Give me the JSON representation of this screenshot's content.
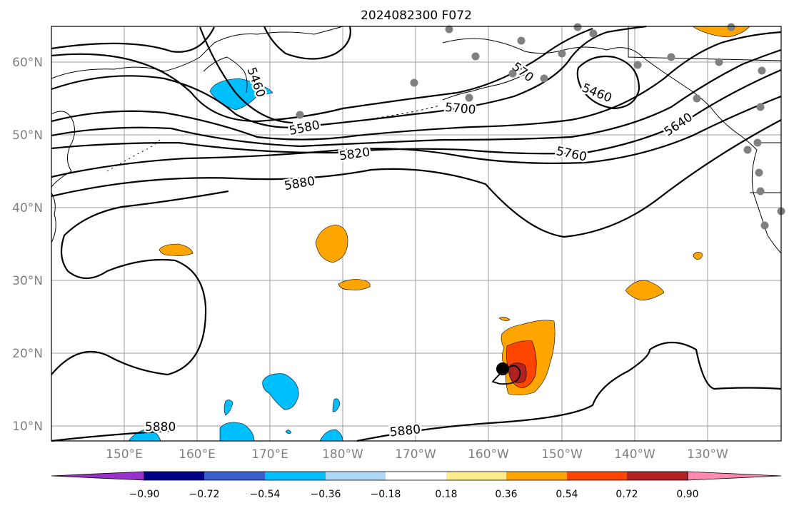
{
  "title": "2024082300 F072",
  "lat_labels": [
    "60°N",
    "50°N",
    "40°N",
    "30°N",
    "20°N",
    "10°N"
  ],
  "lon_labels": [
    "150°E",
    "160°E",
    "170°E",
    "180°W",
    "170°W",
    "160°W",
    "150°W",
    "140°W",
    "130°W"
  ],
  "contour_labels": [
    "5460",
    "5460",
    "5580",
    "5640",
    "5700",
    "5760",
    "5820",
    "5880",
    "5880",
    "5880",
    "570"
  ],
  "colorbar": {
    "tick_labels": [
      "−0.90",
      "−0.72",
      "−0.54",
      "−0.36",
      "−0.18",
      "0.18",
      "0.36",
      "0.54",
      "0.72",
      "0.90"
    ],
    "colors": [
      "#9932cc",
      "#00008b",
      "#3a5fcd",
      "#00bfff",
      "#add8f7",
      "#ffffff",
      "#ffec8b",
      "#ffa500",
      "#ff4500",
      "#b22222",
      "#ff89b0"
    ]
  },
  "station_marker_color": "#808080",
  "storm_marker_color": "#000000"
}
